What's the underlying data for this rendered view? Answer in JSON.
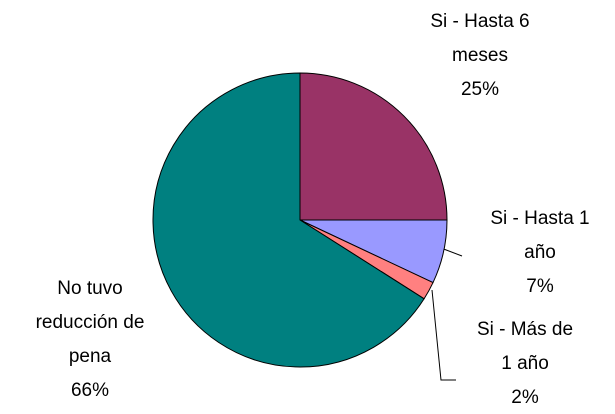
{
  "chart_data": {
    "type": "pie",
    "categories": [
      "Si - Hasta 6 meses",
      "Si - Hasta 1 año",
      "Si - Más de 1 año",
      "No tuvo reducción de pena"
    ],
    "values": [
      25,
      7,
      2,
      66
    ],
    "value_labels": [
      "25%",
      "7%",
      "2%",
      "66%"
    ],
    "colors": [
      "#993366",
      "#9999ff",
      "#ff8080",
      "#008080"
    ]
  }
}
